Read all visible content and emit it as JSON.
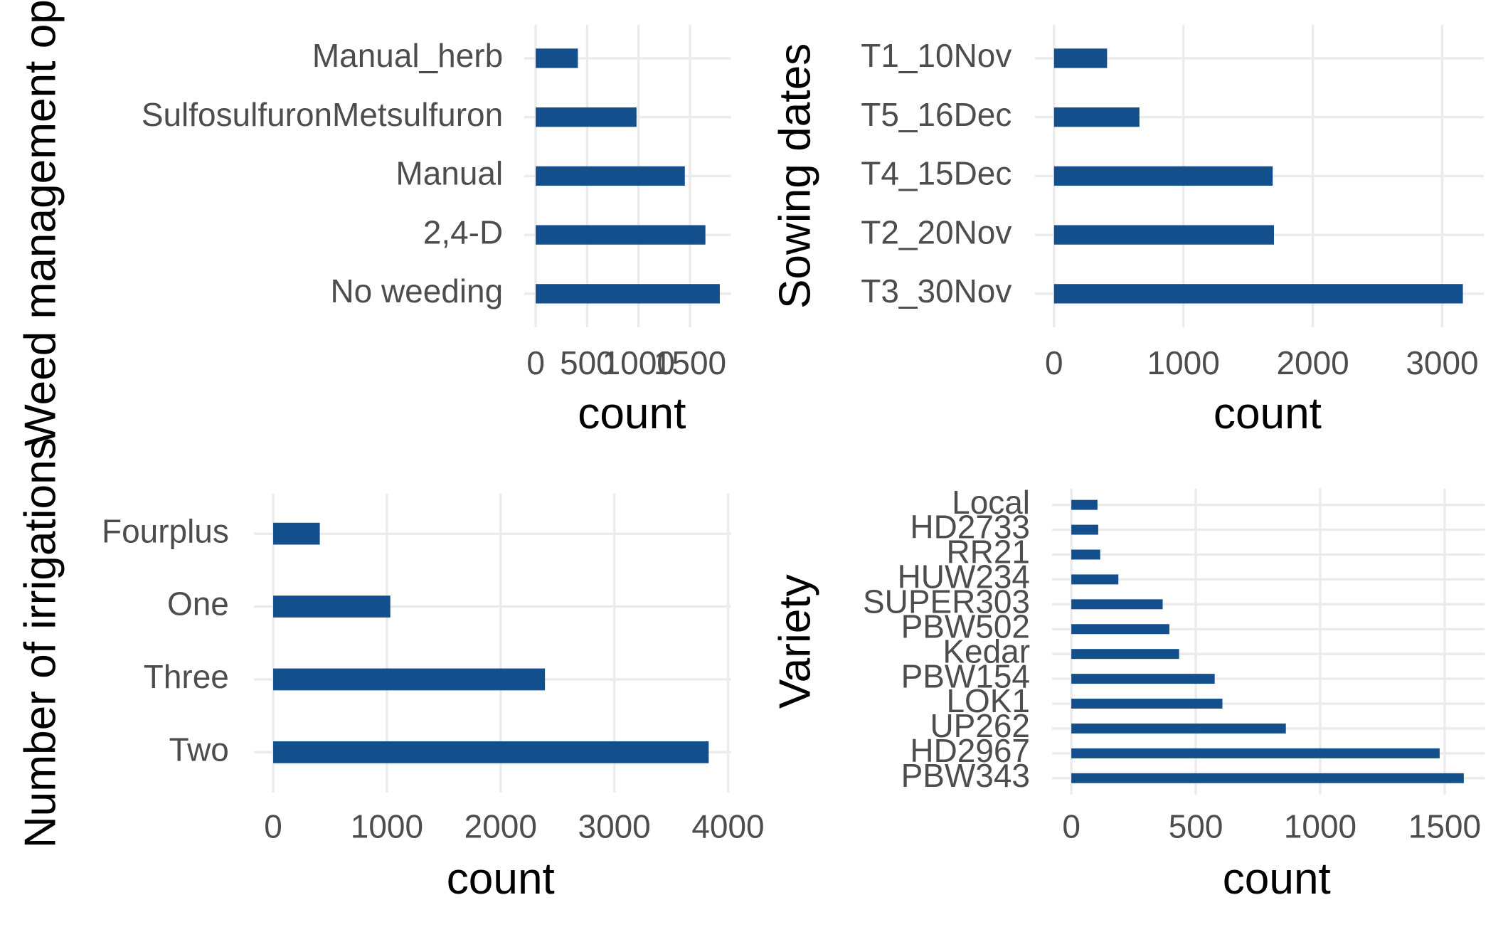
{
  "chart_data": [
    {
      "type": "bar",
      "orientation": "horizontal",
      "y_label": "Weed management options",
      "x_label": "count",
      "categories": [
        "Manual_herb",
        "SulfosulfuronMetsulfuron",
        "Manual",
        "2,4-D",
        "No weeding"
      ],
      "values": [
        410,
        980,
        1450,
        1650,
        1790
      ],
      "color": "#134f8c",
      "xlim": [
        0,
        1870
      ],
      "xticks": [
        0,
        500,
        1000,
        1500
      ],
      "grid": true
    },
    {
      "type": "bar",
      "orientation": "horizontal",
      "y_label": "Sowing dates",
      "x_label": "count",
      "categories": [
        "T1_10Nov",
        "T5_16Dec",
        "T4_15Dec",
        "T2_20Nov",
        "T3_30Nov"
      ],
      "values": [
        410,
        660,
        1690,
        1700,
        3160
      ],
      "color": "#134f8c",
      "xlim": [
        0,
        3300
      ],
      "xticks": [
        0,
        1000,
        2000,
        3000
      ],
      "grid": true
    },
    {
      "type": "bar",
      "orientation": "horizontal",
      "y_label": "Number of irrigations",
      "x_label": "count",
      "categories": [
        "Fourplus",
        "One",
        "Three",
        "Two"
      ],
      "values": [
        410,
        1030,
        2390,
        3830
      ],
      "color": "#134f8c",
      "xlim": [
        0,
        4000
      ],
      "xticks": [
        0,
        1000,
        2000,
        3000,
        4000
      ],
      "grid": true
    },
    {
      "type": "bar",
      "orientation": "horizontal",
      "y_label": "Variety",
      "x_label": "count",
      "categories": [
        "Local",
        "HD2733",
        "RR21",
        "HUW234",
        "SUPER303",
        "PBW502",
        "Kedar",
        "PBW154",
        "LOK1",
        "UP262",
        "HD2967",
        "PBW343"
      ],
      "values": [
        105,
        108,
        116,
        189,
        367,
        394,
        433,
        576,
        607,
        862,
        1480,
        1577
      ],
      "color": "#134f8c",
      "xlim": [
        0,
        1650
      ],
      "xticks": [
        0,
        500,
        1000,
        1500
      ],
      "grid": true
    }
  ]
}
